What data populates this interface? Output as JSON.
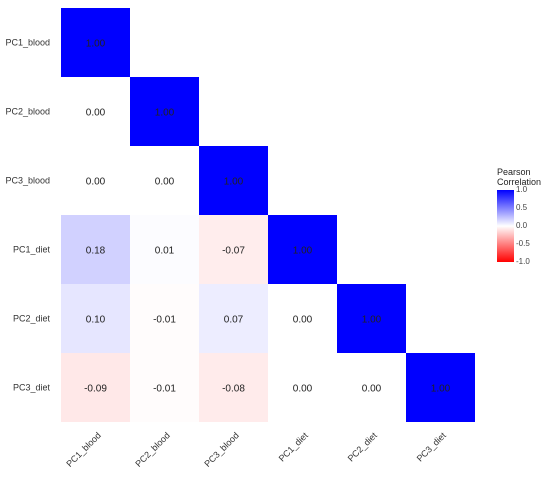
{
  "chart_data": {
    "type": "heatmap",
    "variables": [
      "PC1_blood",
      "PC2_blood",
      "PC3_blood",
      "PC1_diet",
      "PC2_diet",
      "PC3_diet"
    ],
    "matrix": [
      [
        1.0,
        null,
        null,
        null,
        null,
        null
      ],
      [
        0.0,
        1.0,
        null,
        null,
        null,
        null
      ],
      [
        0.0,
        0.0,
        1.0,
        null,
        null,
        null
      ],
      [
        0.18,
        0.01,
        -0.07,
        1.0,
        null,
        null
      ],
      [
        0.1,
        -0.01,
        0.07,
        0.0,
        1.0,
        null
      ],
      [
        -0.09,
        -0.01,
        -0.08,
        0.0,
        0.0,
        1.0
      ]
    ],
    "cell_labels": [
      [
        "1.00",
        "",
        "",
        "",
        "",
        ""
      ],
      [
        "0.00",
        "1.00",
        "",
        "",
        "",
        ""
      ],
      [
        "0.00",
        "0.00",
        "1.00",
        "",
        "",
        ""
      ],
      [
        "0.18",
        "0.01",
        "-0.07",
        "1.00",
        "",
        ""
      ],
      [
        "0.10",
        "-0.01",
        "0.07",
        "0.00",
        "1.00",
        ""
      ],
      [
        "-0.09",
        "-0.01",
        "-0.08",
        "0.00",
        "0.00",
        "1.00"
      ]
    ],
    "colorscale": {
      "low": "#ff0000",
      "mid": "#ffffff",
      "high": "#0000ff",
      "limits": [
        -1,
        1
      ]
    },
    "legend": {
      "title_line1": "Pearson",
      "title_line2": "Correlation",
      "ticks": [
        "1.0",
        "0.5",
        "0.0",
        "-0.5",
        "-1.0"
      ],
      "placement": "right"
    }
  }
}
